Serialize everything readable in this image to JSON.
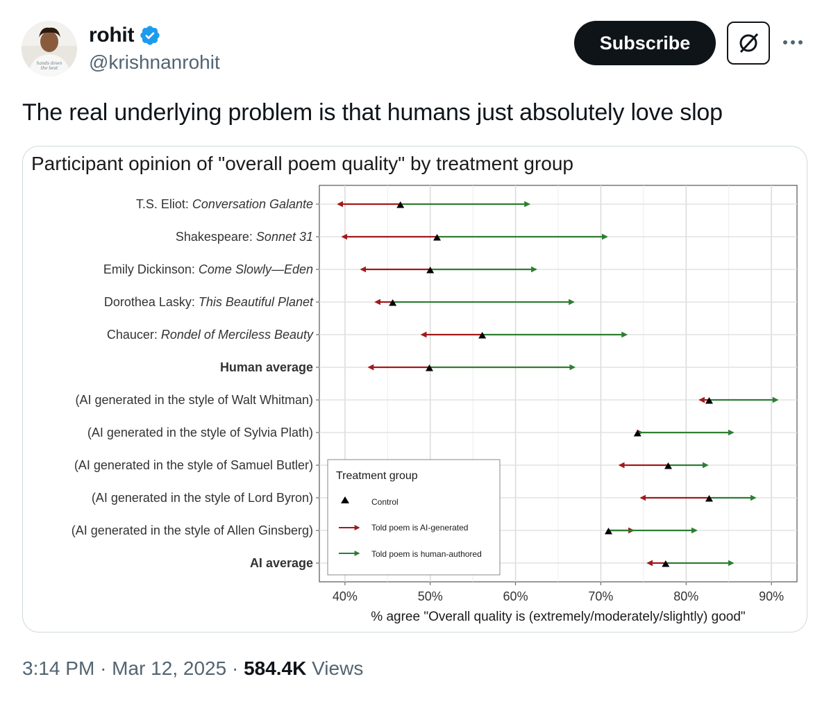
{
  "author": {
    "display_name": "rohit",
    "handle": "@krishnanrohit",
    "verified": true,
    "avatar_shirt_text": [
      "hands down",
      "the best"
    ]
  },
  "actions": {
    "subscribe_label": "Subscribe",
    "grok_icon": "grok-icon",
    "more_icon": "more-icon"
  },
  "tweet": {
    "text": "The real underlying problem is that humans just absolutely love slop",
    "time": "3:14 PM",
    "date": "Mar 12, 2025",
    "separator": "·",
    "views_count": "584.4K",
    "views_label": "Views"
  },
  "colors": {
    "ai_generated_arrow": "#a11a1a",
    "human_authored_arrow": "#2e7d32",
    "control_marker": "#000000"
  },
  "chart_data": {
    "type": "dot-arrow",
    "title": "Participant opinion of \"overall poem quality\" by treatment group",
    "xlabel": "% agree \"Overall quality is (extremely/moderately/slightly) good\"",
    "ylabel": "",
    "xlim": [
      37,
      93
    ],
    "x_ticks": [
      40,
      50,
      60,
      70,
      80,
      90
    ],
    "x_tick_labels": [
      "40%",
      "50%",
      "60%",
      "70%",
      "80%",
      "90%"
    ],
    "grid": true,
    "categories": [
      {
        "prefix": "T.S. Eliot: ",
        "italic": "Conversation Galante",
        "suffix": "",
        "bold": false
      },
      {
        "prefix": "Shakespeare: ",
        "italic": "Sonnet 31",
        "suffix": "",
        "bold": false
      },
      {
        "prefix": "Emily Dickinson: ",
        "italic": "Come Slowly—Eden",
        "suffix": "",
        "bold": false
      },
      {
        "prefix": "Dorothea Lasky: ",
        "italic": "This Beautiful Planet",
        "suffix": "",
        "bold": false
      },
      {
        "prefix": "Chaucer: ",
        "italic": "Rondel of Merciless Beauty",
        "suffix": "",
        "bold": false
      },
      {
        "prefix": "Human average",
        "italic": "",
        "suffix": "",
        "bold": true
      },
      {
        "prefix": "(AI generated in the style of Walt Whitman)",
        "italic": "",
        "suffix": "",
        "bold": false
      },
      {
        "prefix": "(AI generated in the style of Sylvia Plath)",
        "italic": "",
        "suffix": "",
        "bold": false
      },
      {
        "prefix": "(AI generated in the style of Samuel Butler)",
        "italic": "",
        "suffix": "",
        "bold": false
      },
      {
        "prefix": "(AI generated in the style of Lord Byron)",
        "italic": "",
        "suffix": "",
        "bold": false
      },
      {
        "prefix": "(AI generated in the style of Allen Ginsberg)",
        "italic": "",
        "suffix": "",
        "bold": false
      },
      {
        "prefix": "AI average",
        "italic": "",
        "suffix": "",
        "bold": true
      }
    ],
    "series": [
      {
        "name": "Control",
        "values": [
          46.5,
          50.8,
          50.0,
          45.6,
          56.1,
          49.9,
          82.7,
          74.3,
          77.9,
          82.7,
          70.9,
          77.6
        ]
      },
      {
        "name": "Told poem is AI-generated",
        "values": [
          39.2,
          39.7,
          41.9,
          43.6,
          49.0,
          42.8,
          81.6,
          74.8,
          72.2,
          74.7,
          73.8,
          75.5
        ]
      },
      {
        "name": "Told poem is human-authored",
        "values": [
          61.6,
          70.7,
          62.4,
          66.8,
          73.0,
          66.9,
          90.7,
          85.5,
          82.5,
          88.1,
          81.2,
          85.5
        ]
      }
    ],
    "legend": {
      "title": "Treatment group",
      "position": "bottom-left",
      "entries": [
        "Control",
        "Told poem is AI-generated",
        "Told poem is human-authored"
      ]
    }
  }
}
